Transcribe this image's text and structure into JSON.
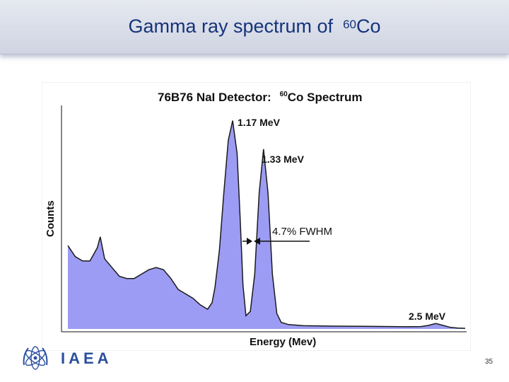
{
  "slide": {
    "title_main": "Gamma ray spectrum of",
    "title_sup": "60",
    "title_element": "Co",
    "page_number": "35"
  },
  "logo": {
    "text": "IAEA",
    "emblem_icon": "iaea-emblem-icon"
  },
  "chart_data": {
    "type": "area",
    "title_prefix": "76B76 NaI Detector:",
    "title_sup": "60",
    "title_suffix": "Co Spectrum",
    "xlabel": "Energy (Mev)",
    "ylabel": "Counts",
    "grid": false,
    "fill_color": "#9c9cf4",
    "line_color": "#1a1a1a",
    "series": [
      {
        "x": [
          0.0,
          0.05,
          0.1,
          0.15,
          0.2,
          0.22,
          0.25,
          0.3,
          0.35,
          0.4,
          0.45,
          0.5,
          0.55,
          0.6,
          0.65,
          0.7,
          0.75,
          0.8,
          0.85,
          0.9,
          0.95,
          0.98,
          1.0,
          1.03,
          1.06,
          1.09,
          1.12,
          1.15,
          1.17,
          1.19,
          1.21,
          1.24,
          1.27,
          1.3,
          1.33,
          1.36,
          1.39,
          1.42,
          1.45,
          1.5,
          1.6,
          1.8,
          2.0,
          2.2,
          2.3,
          2.4,
          2.45,
          2.5,
          2.55,
          2.6,
          2.65,
          2.7
        ],
        "y": [
          0.38,
          0.33,
          0.31,
          0.31,
          0.37,
          0.42,
          0.32,
          0.28,
          0.24,
          0.23,
          0.23,
          0.25,
          0.27,
          0.28,
          0.27,
          0.23,
          0.18,
          0.16,
          0.14,
          0.11,
          0.09,
          0.12,
          0.19,
          0.36,
          0.62,
          0.86,
          0.95,
          0.8,
          0.52,
          0.2,
          0.06,
          0.08,
          0.25,
          0.62,
          0.82,
          0.62,
          0.25,
          0.07,
          0.03,
          0.02,
          0.015,
          0.013,
          0.012,
          0.011,
          0.01,
          0.011,
          0.016,
          0.025,
          0.016,
          0.007,
          0.004,
          0.003
        ]
      }
    ],
    "annotations": [
      {
        "text": "1.17 MeV",
        "x": 1.17
      },
      {
        "text": "1.33 MeV",
        "x": 1.33
      },
      {
        "text": "4.7% FWHM",
        "x": 1.33
      },
      {
        "text": "2.5 MeV",
        "x": 2.5
      }
    ],
    "xlim": [
      0,
      2.7
    ],
    "ylim": [
      0,
      1
    ]
  }
}
